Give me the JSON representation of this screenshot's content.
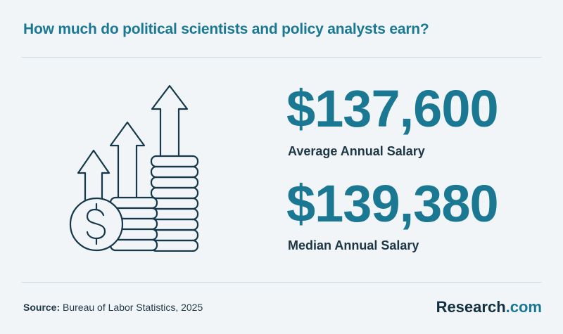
{
  "title": "How much do political scientists and policy analysts earn?",
  "stats": [
    {
      "value": "$137,600",
      "label": "Average Annual Salary"
    },
    {
      "value": "$139,380",
      "label": "Median Annual Salary"
    }
  ],
  "source": {
    "prefix": "Source:",
    "text": "Bureau of Labor Statistics, 2025"
  },
  "brand": {
    "name": "Research",
    "suffix": ".com"
  },
  "icons": [
    "money-growth-icon",
    "dollar-coin-icon",
    "coin-stack-icon",
    "up-arrow-icon"
  ],
  "colors": {
    "accent": "#1a7892",
    "dark": "#1d3645",
    "background": "#f1f5f8"
  }
}
